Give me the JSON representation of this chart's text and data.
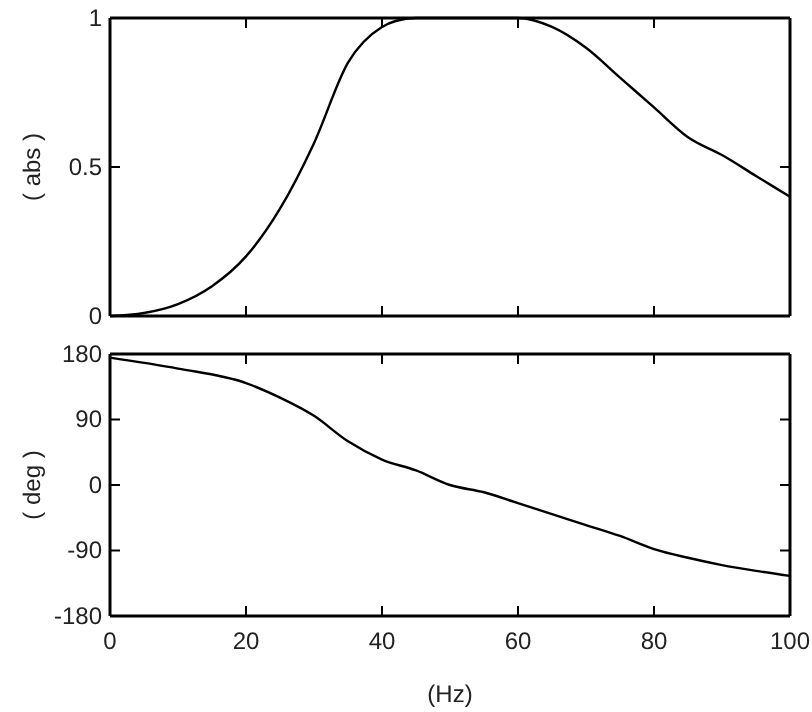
{
  "chart_data": [
    {
      "type": "line",
      "ylabel": "( abs )",
      "xlim": [
        0,
        100
      ],
      "xticks": [
        0,
        20,
        40,
        60,
        80,
        100
      ],
      "ylim": [
        0,
        1
      ],
      "yticks": [
        0,
        0.5,
        1
      ],
      "tick_labels": "y",
      "x": [
        0,
        5,
        10,
        15,
        20,
        25,
        30,
        35,
        40,
        42,
        45,
        50,
        55,
        60,
        65,
        70,
        75,
        80,
        85,
        90,
        95,
        100
      ],
      "series": [
        {
          "color": "#000000",
          "values": [
            0,
            0.01,
            0.04,
            0.1,
            0.2,
            0.36,
            0.58,
            0.85,
            0.97,
            0.99,
            1,
            1,
            1,
            1,
            0.97,
            0.9,
            0.8,
            0.7,
            0.6,
            0.54,
            0.47,
            0.4
          ]
        }
      ]
    },
    {
      "type": "line",
      "xlabel": "(Hz)",
      "ylabel": "( deg )",
      "xlim": [
        0,
        100
      ],
      "xticks": [
        0,
        20,
        40,
        60,
        80,
        100
      ],
      "ylim": [
        -180,
        180
      ],
      "yticks": [
        -180,
        -90,
        0,
        90,
        180
      ],
      "x": [
        0,
        10,
        20,
        25,
        30,
        35,
        40,
        45,
        50,
        55,
        60,
        65,
        70,
        75,
        80,
        85,
        90,
        95,
        100
      ],
      "series": [
        {
          "color": "#000000",
          "values": [
            175,
            160,
            140,
            120,
            95,
            60,
            35,
            20,
            0,
            -10,
            -25,
            -40,
            -55,
            -70,
            -88,
            -100,
            -110,
            -118,
            -125
          ]
        }
      ]
    }
  ]
}
